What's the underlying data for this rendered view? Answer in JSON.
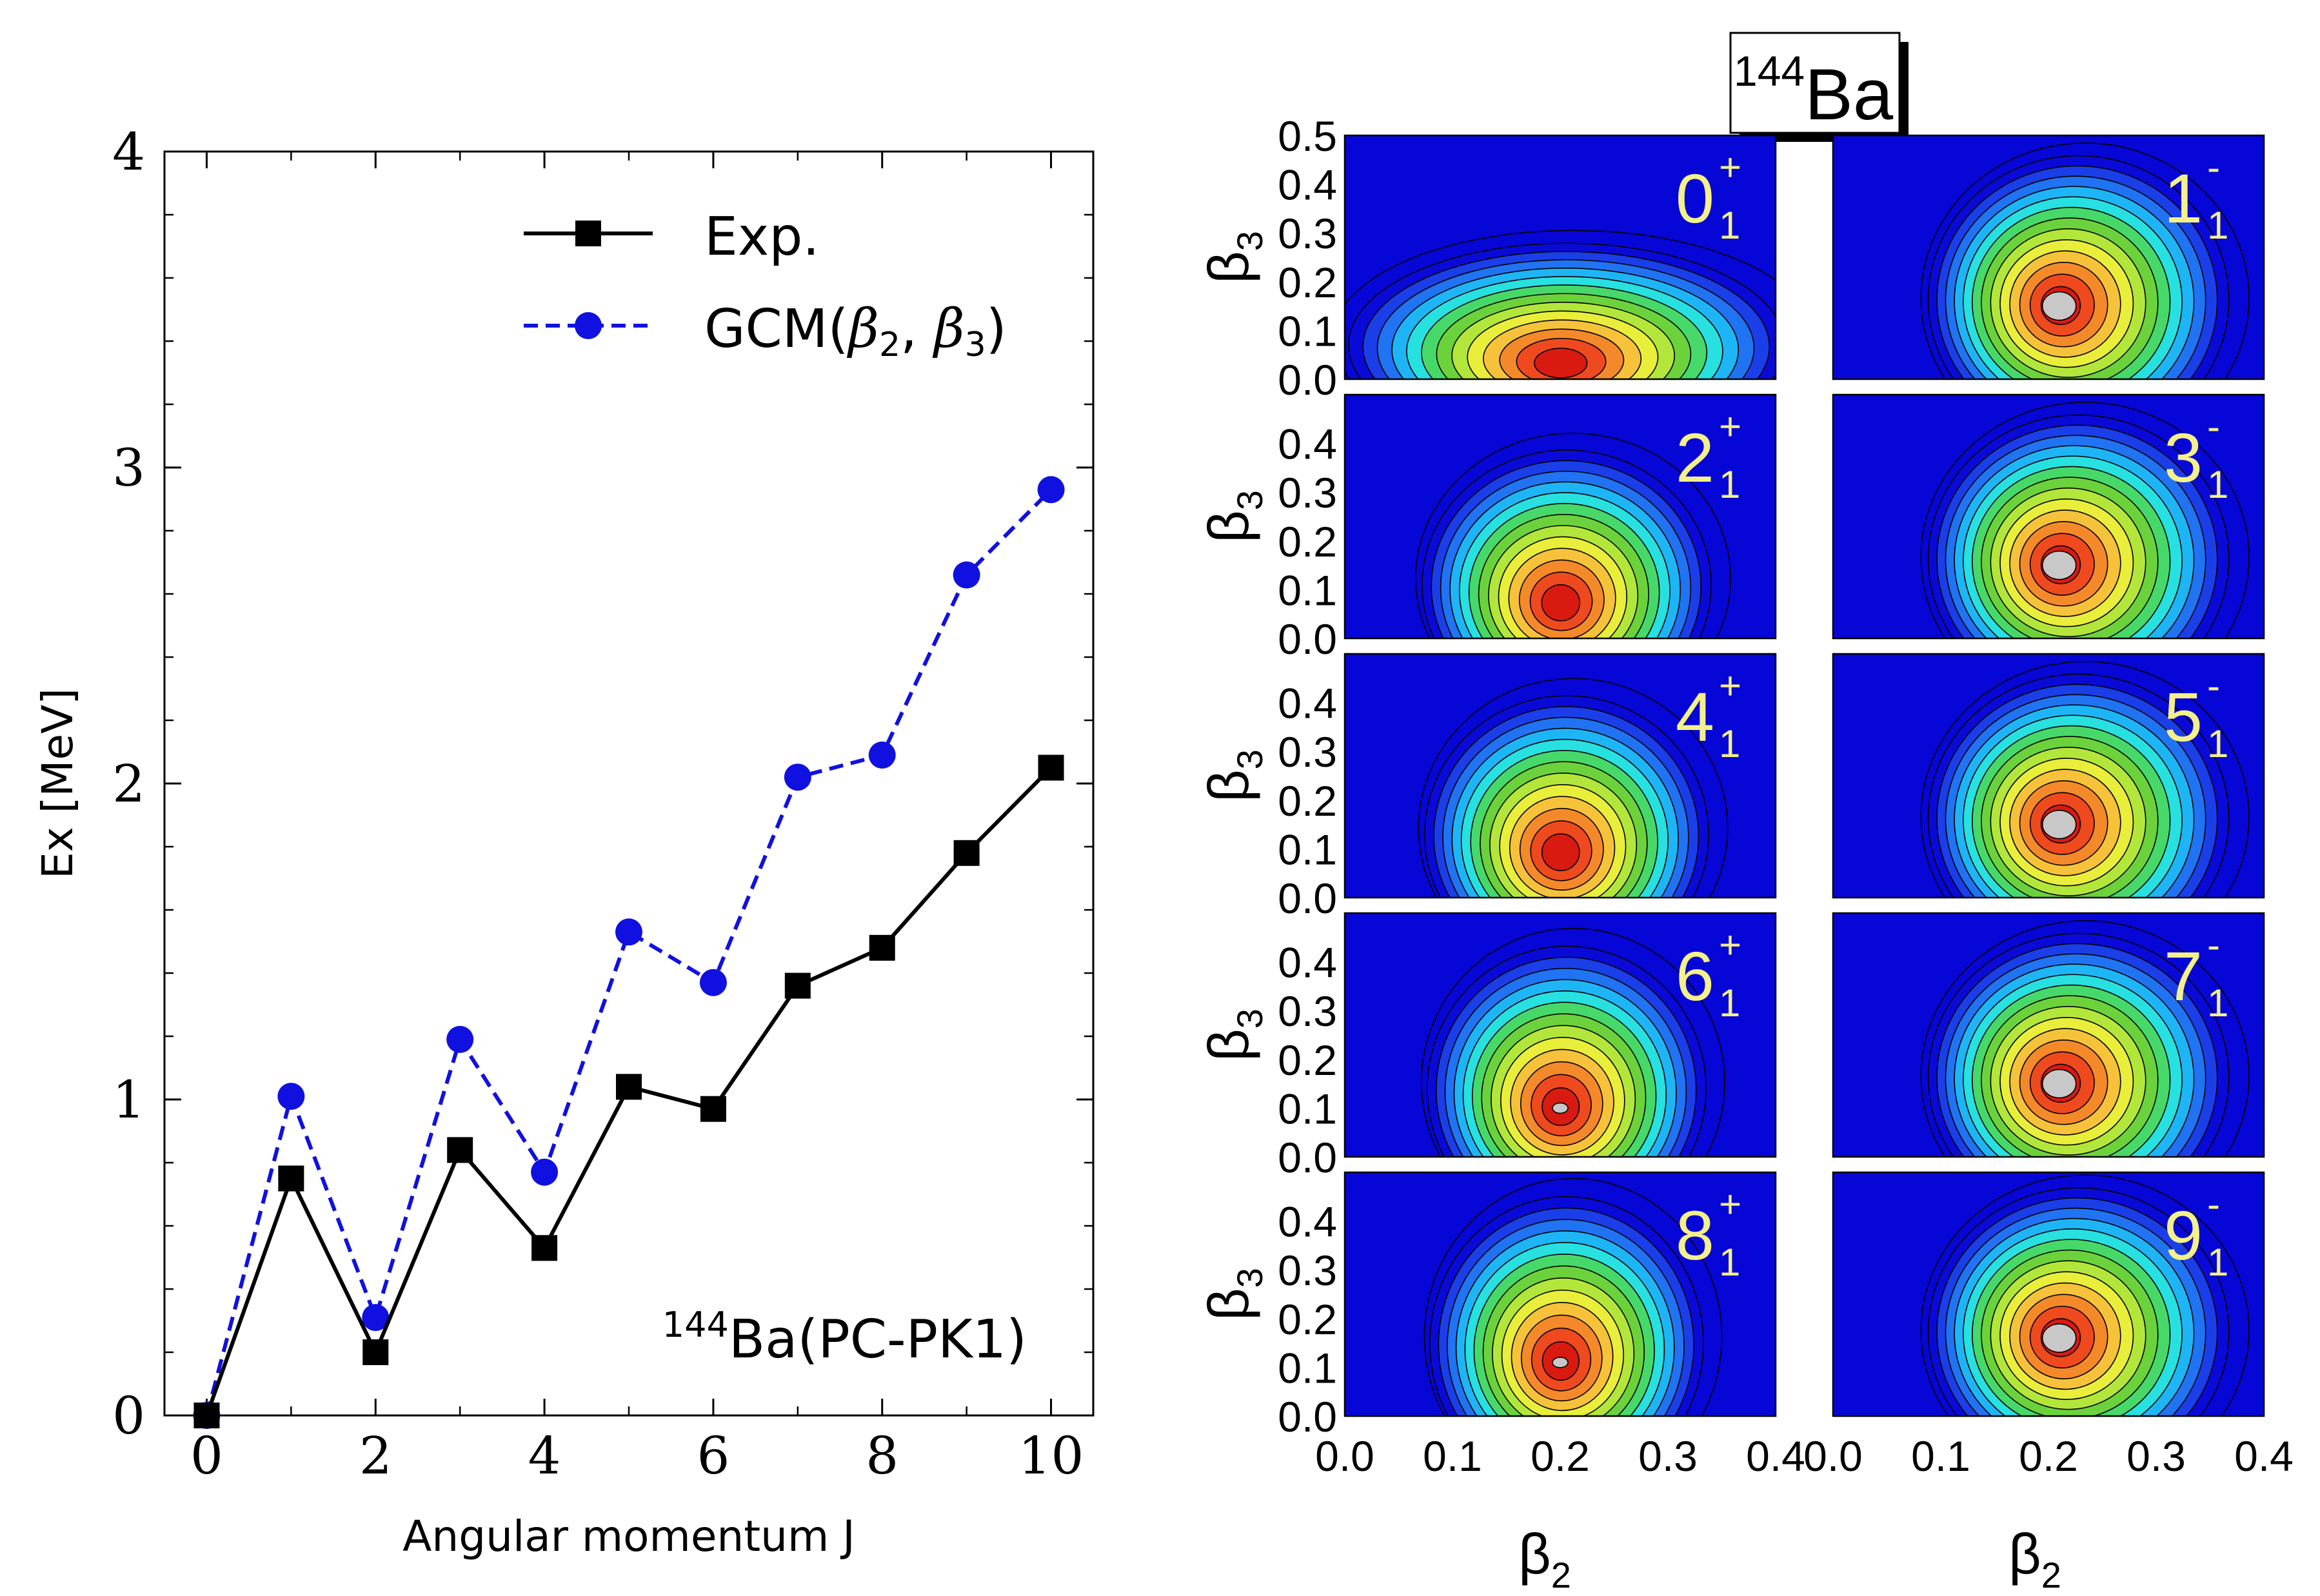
{
  "chart_data": [
    {
      "type": "line",
      "title": "",
      "xlabel": "Angular momentum J",
      "ylabel": "Ex [MeV]",
      "xlim": [
        -0.5,
        10.5
      ],
      "ylim": [
        0,
        4
      ],
      "x_ticks": [
        "0",
        "2",
        "4",
        "6",
        "8",
        "10"
      ],
      "y_ticks": [
        "0",
        "1",
        "2",
        "3",
        "4"
      ],
      "annotation": {
        "sup": "144",
        "text": "Ba(PC-PK1)"
      },
      "series": [
        {
          "name": "Exp.",
          "color": "#000000",
          "marker": "square",
          "linestyle": "solid",
          "x": [
            0,
            1,
            2,
            3,
            4,
            5,
            6,
            7,
            8,
            9,
            10
          ],
          "values": [
            0.0,
            0.75,
            0.2,
            0.84,
            0.53,
            1.04,
            0.97,
            1.36,
            1.48,
            1.78,
            2.05
          ]
        },
        {
          "name": "GCM(β2, β3)",
          "legend_main": "GCM(",
          "legend_beta": "β",
          "legend_sub2": "2",
          "legend_comma": ", ",
          "legend_sub3": "3",
          "legend_close": ")",
          "color": "#1010e0",
          "marker": "circle",
          "linestyle": "dashed",
          "x": [
            0,
            1,
            2,
            3,
            4,
            5,
            6,
            7,
            8,
            9,
            10
          ],
          "values": [
            0.0,
            1.01,
            0.31,
            1.19,
            0.77,
            1.53,
            1.37,
            2.02,
            2.09,
            2.66,
            2.93
          ]
        }
      ]
    },
    {
      "type": "heatmap",
      "title_sup": "144",
      "title": "Ba",
      "xlabel": "β2",
      "ylabel": "β3",
      "xlim": [
        0.0,
        0.4
      ],
      "ylim": [
        0.0,
        0.5
      ],
      "x_ticks": [
        "0.0",
        "0.1",
        "0.2",
        "0.3",
        "0.4"
      ],
      "y_ticks_top": [
        "0.0",
        "0.1",
        "0.2",
        "0.3",
        "0.4",
        "0.5"
      ],
      "y_ticks": [
        "0.0",
        "0.1",
        "0.2",
        "0.3",
        "0.4"
      ],
      "label_beta": "β",
      "label_sub2": "2",
      "label_sub3": "3",
      "panels": [
        {
          "state": "0",
          "parity": "+",
          "index": "1",
          "column": 0,
          "row": 0,
          "peak_b2": 0.2,
          "peak_b3": 0.03
        },
        {
          "state": "1",
          "parity": "-",
          "index": "1",
          "column": 1,
          "row": 0,
          "peak_b2": 0.21,
          "peak_b3": 0.15
        },
        {
          "state": "2",
          "parity": "+",
          "index": "1",
          "column": 0,
          "row": 1,
          "peak_b2": 0.2,
          "peak_b3": 0.07
        },
        {
          "state": "3",
          "parity": "-",
          "index": "1",
          "column": 1,
          "row": 1,
          "peak_b2": 0.21,
          "peak_b3": 0.15
        },
        {
          "state": "4",
          "parity": "+",
          "index": "1",
          "column": 0,
          "row": 2,
          "peak_b2": 0.2,
          "peak_b3": 0.09
        },
        {
          "state": "5",
          "parity": "-",
          "index": "1",
          "column": 1,
          "row": 2,
          "peak_b2": 0.21,
          "peak_b3": 0.15
        },
        {
          "state": "6",
          "parity": "+",
          "index": "1",
          "column": 0,
          "row": 3,
          "peak_b2": 0.2,
          "peak_b3": 0.1
        },
        {
          "state": "7",
          "parity": "-",
          "index": "1",
          "column": 1,
          "row": 3,
          "peak_b2": 0.21,
          "peak_b3": 0.15
        },
        {
          "state": "8",
          "parity": "+",
          "index": "1",
          "column": 0,
          "row": 4,
          "peak_b2": 0.2,
          "peak_b3": 0.11
        },
        {
          "state": "9",
          "parity": "-",
          "index": "1",
          "column": 1,
          "row": 4,
          "peak_b2": 0.21,
          "peak_b3": 0.16
        }
      ]
    }
  ]
}
